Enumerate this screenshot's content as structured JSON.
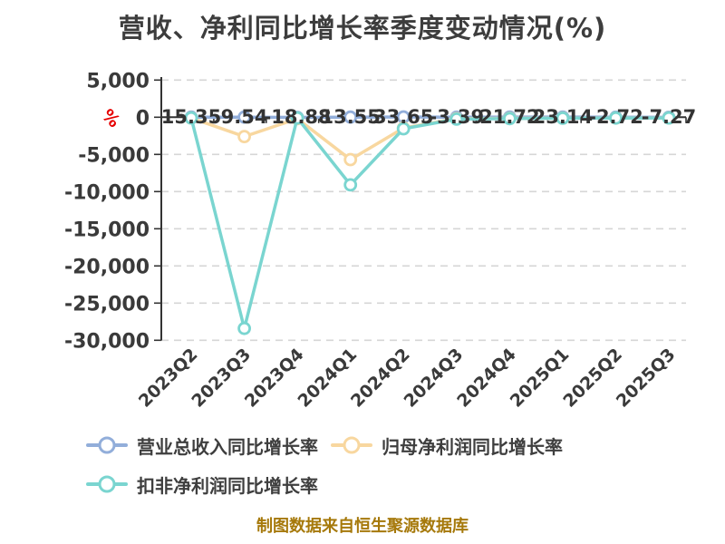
{
  "title": "营收、净利同比增长率季度变动情况(%)",
  "y_axis": {
    "unit_symbol": "%",
    "unit_color": "#e60000",
    "tick_labels": [
      "5,000",
      "0",
      "-5,000",
      "-10,000",
      "-15,000",
      "-20,000",
      "-25,000",
      "-30,000"
    ],
    "tick_values": [
      5000,
      0,
      -5000,
      -10000,
      -15000,
      -20000,
      -25000,
      -30000
    ]
  },
  "chart_data": {
    "type": "line",
    "title": "营收、净利同比增长率季度变动情况(%)",
    "categories": [
      "2023Q2",
      "2023Q3",
      "2023Q4",
      "2024Q1",
      "2024Q2",
      "2024Q3",
      "2024Q4",
      "2025Q1",
      "2025Q2",
      "2025Q3"
    ],
    "ylim": [
      -30000,
      5000
    ],
    "grid": {
      "horizontal": true,
      "style": "dashed",
      "color": "#d6d6d6"
    },
    "legend_position": "bottom-left",
    "series": [
      {
        "name": "营业总收入同比增长率",
        "color": "#92aeda",
        "values": [
          15.35,
          9.54,
          -18.88,
          13.55,
          33.65,
          -3.39,
          21.72,
          23.14,
          -2.72,
          -7.27
        ],
        "point_labels": [
          "15.35",
          "9.54",
          "-18.88",
          "13.55",
          "33.65",
          "-3.39",
          "21.72",
          "23.14",
          "-2.72",
          "-7.27"
        ]
      },
      {
        "name": "归母净利润同比增长率",
        "color": "#f8d79f",
        "values": [
          -100,
          -2600,
          -200,
          -5700,
          -1450,
          -200,
          -150,
          -120,
          -100,
          -100
        ]
      },
      {
        "name": "扣非净利润同比增长率",
        "color": "#7ad5d0",
        "values": [
          -100,
          -28400,
          -100,
          -9100,
          -1550,
          -250,
          -180,
          -130,
          -110,
          -100
        ]
      }
    ]
  },
  "source_note": {
    "text": "制图数据来自恒生聚源数据库",
    "color": "#a6790b"
  }
}
